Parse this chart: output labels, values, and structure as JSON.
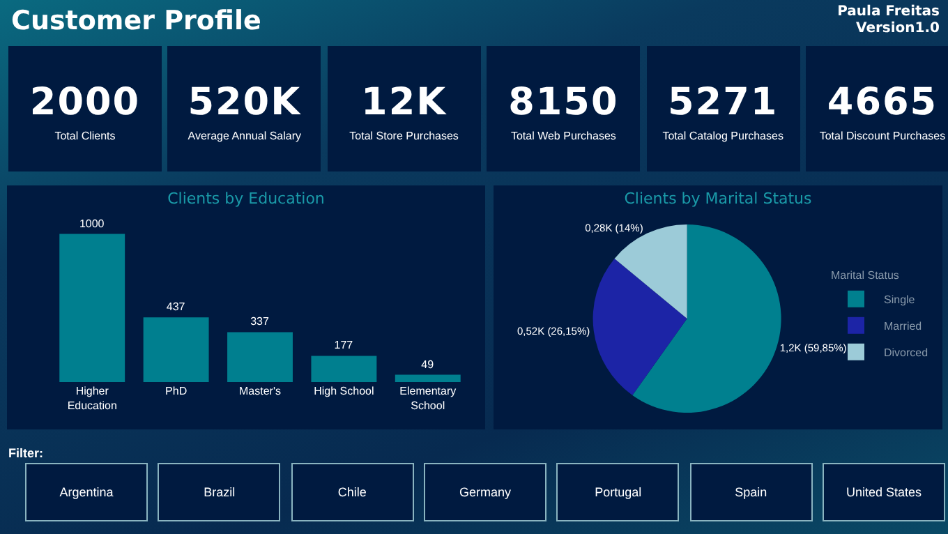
{
  "chart_data": [
    {
      "type": "other",
      "title": "Customer Profile",
      "annotations": [
        "Paula Freitas",
        "Version1.0"
      ],
      "categories": [
        "Total Clients",
        "Average Annual Salary",
        "Total Store Purchases",
        "Total Web Purchases",
        "Total Catalog Purchases",
        "Total Discount Purchases"
      ],
      "value_labels": [
        "2000",
        "520K",
        "12K",
        "8150",
        "5271",
        "4665"
      ]
    },
    {
      "type": "bar",
      "title": "Clients by Education",
      "categories": [
        "Higher Education",
        "PhD",
        "Master's",
        "High School",
        "Elementary School"
      ],
      "values": [
        1000,
        437,
        337,
        177,
        49
      ],
      "color": "#007f8f",
      "data_labels": true
    },
    {
      "type": "pie",
      "title": "Clients by Marital Status",
      "categories": [
        "Single",
        "Married",
        "Divorced"
      ],
      "values": [
        59.85,
        26.15,
        14
      ],
      "colors": [
        "#00808f",
        "#1c24a6",
        "#9ccbd8"
      ],
      "value_labels": [
        "1,2K (59,85%)",
        "0,52K (26,15%)",
        "0,28K (14%)"
      ],
      "legend": "right",
      "legend_title": "Marital Status"
    },
    {
      "type": "other",
      "title": "Filter:",
      "categories": [
        "Argentina",
        "Brazil",
        "Chile",
        "Germany",
        "Portugal",
        "Spain",
        "United States"
      ]
    }
  ]
}
